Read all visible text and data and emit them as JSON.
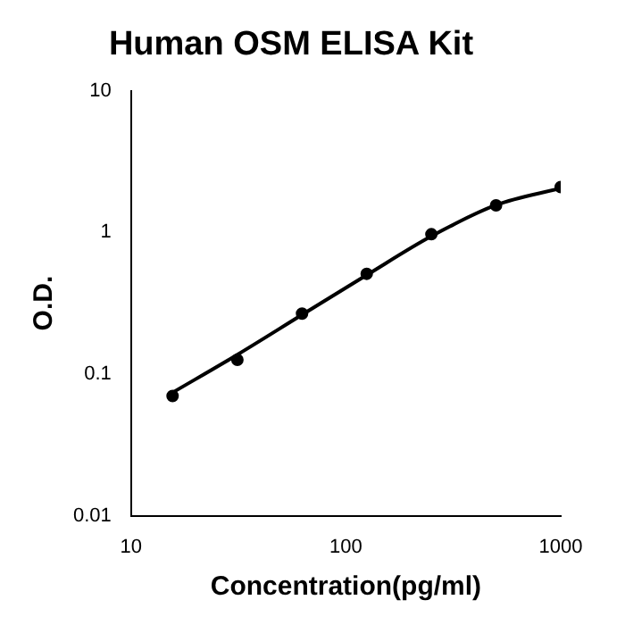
{
  "chart_data": {
    "type": "scatter",
    "title": "Human OSM ELISA Kit",
    "xlabel": "Concentration(pg/ml)",
    "ylabel": "O.D.",
    "log": "xy",
    "grid": false,
    "legend": false,
    "marker": "circle",
    "x": [
      15.6,
      31.25,
      62.5,
      125,
      250,
      500,
      1000
    ],
    "series": [
      {
        "type": "scatter",
        "color": "#000000",
        "values": [
          0.07,
          0.126,
          0.267,
          0.51,
          0.97,
          1.55,
          2.09
        ]
      },
      {
        "type": "line",
        "color": "#000000",
        "marker": "none",
        "line_style": "solid",
        "x": [
          15.6,
          31.25,
          62.5,
          125,
          250,
          500,
          1000
        ],
        "values": [
          0.074,
          0.137,
          0.262,
          0.5,
          0.94,
          1.56,
          2.05
        ]
      }
    ],
    "xlim": [
      10,
      1000
    ],
    "xticks": [
      10,
      100,
      1000
    ],
    "ylim": [
      0.01,
      10
    ],
    "yticks": [
      0.01,
      0.1,
      1,
      10
    ]
  }
}
